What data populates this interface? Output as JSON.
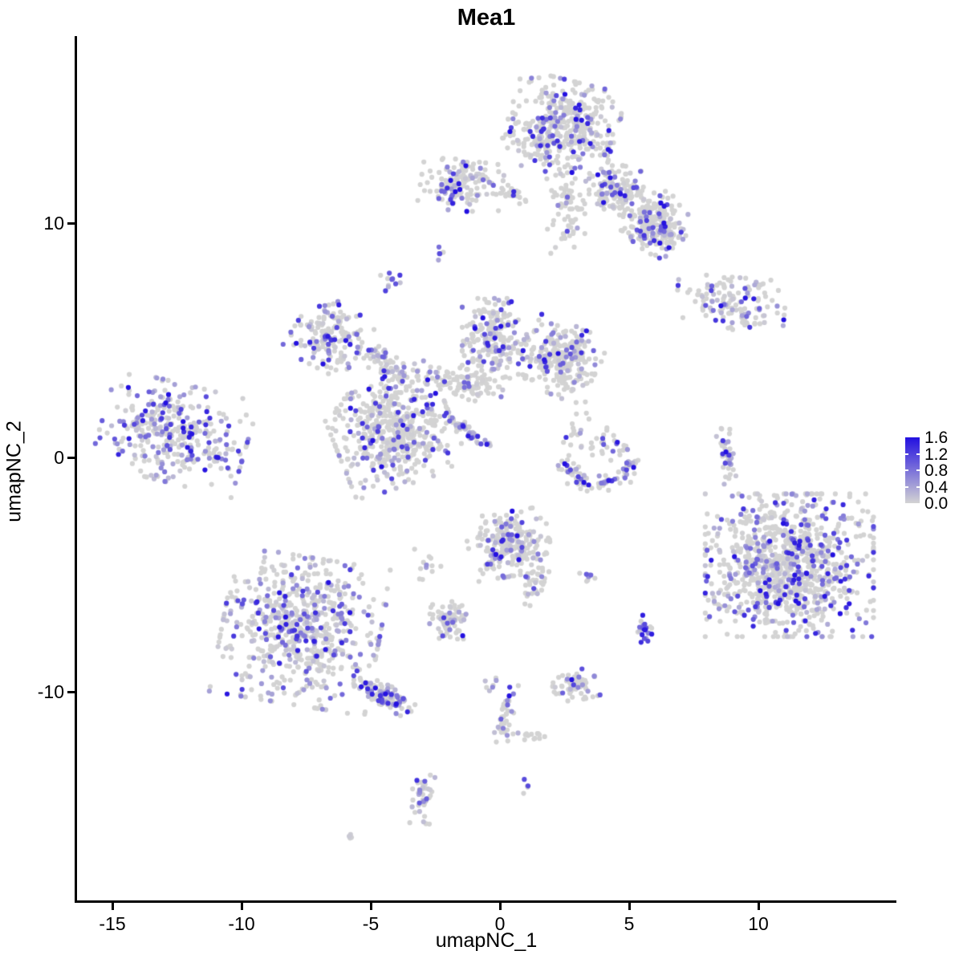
{
  "chart_data": {
    "type": "scatter",
    "title": "Mea1",
    "xlabel": "umapNC_1",
    "ylabel": "umapNC_2",
    "x_ticks": [
      {
        "v": -15,
        "label": "-15"
      },
      {
        "v": -10,
        "label": "-10"
      },
      {
        "v": -5,
        "label": "-5"
      },
      {
        "v": 0,
        "label": "0"
      },
      {
        "v": 5,
        "label": "5"
      },
      {
        "v": 10,
        "label": "10"
      }
    ],
    "y_ticks": [
      {
        "v": 10,
        "label": "10"
      },
      {
        "v": 0,
        "label": "0"
      },
      {
        "v": -10,
        "label": "-10"
      }
    ],
    "xlim": [
      -16.4,
      15.3
    ],
    "ylim": [
      -18.9,
      18.0
    ],
    "grid": false,
    "legend": {
      "position": "right",
      "min": 0,
      "max": 1.6,
      "labels": [
        "1.6",
        "1.2",
        "0.8",
        "0.4",
        "0.0"
      ]
    },
    "colors": {
      "low": "#D3D3D3",
      "high": "#2310E0"
    },
    "point_radius": 3.1,
    "seed": 42,
    "clusters": [
      {
        "name": "top-main",
        "cx": 2.4,
        "cy": 14.1,
        "rx": 1.0,
        "ry": 0.95,
        "rot": -15,
        "n": 420,
        "frac": 0.3,
        "pow": 2.0
      },
      {
        "name": "top-neck",
        "cx": 2.55,
        "cy": 10.6,
        "rx": 0.35,
        "ry": 0.9,
        "rot": 0,
        "n": 75,
        "frac": 0.22,
        "pow": 2.0
      },
      {
        "name": "trail-mid",
        "cx": 4.5,
        "cy": 11.4,
        "rx": 0.5,
        "ry": 0.5,
        "rot": 0,
        "n": 140,
        "frac": 0.36,
        "pow": 2.0
      },
      {
        "name": "trail-right",
        "cx": 6.0,
        "cy": 10.1,
        "rx": 0.55,
        "ry": 0.6,
        "rot": -35,
        "n": 180,
        "frac": 0.36,
        "pow": 2.0
      },
      {
        "name": "trail-tip",
        "cx": 6.35,
        "cy": 9.35,
        "rx": 0.4,
        "ry": 0.4,
        "rot": 0,
        "n": 48,
        "frac": 0.4,
        "pow": 2.0
      },
      {
        "name": "topleft-bar",
        "cx": -1.5,
        "cy": 11.6,
        "rx": 0.75,
        "ry": 0.52,
        "rot": -8,
        "n": 150,
        "frac": 0.3,
        "pow": 2.0
      },
      {
        "name": "topleft-bits",
        "cx": 0.4,
        "cy": 11.25,
        "rx": 0.3,
        "ry": 0.2,
        "rot": 0,
        "n": 22,
        "frac": 0.3,
        "pow": 2.0
      },
      {
        "name": "dot-a",
        "cx": -2.45,
        "cy": 8.8,
        "rx": 0.18,
        "ry": 0.18,
        "rot": 0,
        "n": 5,
        "frac": 0.5,
        "pow": 1.6
      },
      {
        "name": "dot-b",
        "cx": -4.2,
        "cy": 7.4,
        "rx": 0.25,
        "ry": 0.3,
        "rot": 20,
        "n": 12,
        "frac": 0.45,
        "pow": 1.6
      },
      {
        "name": "arrow",
        "cx": 8.95,
        "cy": 6.75,
        "rx": 1.0,
        "ry": 0.45,
        "rot": -5,
        "n": 120,
        "frac": 0.45,
        "pow": 1.8
      },
      {
        "name": "arrow-tail",
        "cx": 9.35,
        "cy": 5.8,
        "rx": 0.25,
        "ry": 0.25,
        "rot": 0,
        "n": 16,
        "frac": 0.3,
        "pow": 2.0
      },
      {
        "name": "arm-left",
        "cx": -6.6,
        "cy": 5.2,
        "rx": 0.65,
        "ry": 0.68,
        "rot": -30,
        "n": 170,
        "frac": 0.42,
        "pow": 2.0
      },
      {
        "name": "strand-a",
        "cx": -4.4,
        "cy": 3.9,
        "rx": 0.65,
        "ry": 0.25,
        "rot": -35,
        "n": 75,
        "frac": 0.35,
        "pow": 2.0
      },
      {
        "name": "funnel",
        "cx": -0.2,
        "cy": 4.9,
        "rx": 0.6,
        "ry": 0.9,
        "rot": 0,
        "n": 220,
        "frac": 0.3,
        "pow": 2.0
      },
      {
        "name": "right-lobe",
        "cx": 2.35,
        "cy": 4.2,
        "rx": 0.7,
        "ry": 0.72,
        "rot": -25,
        "n": 250,
        "frac": 0.3,
        "pow": 2.0
      },
      {
        "name": "band",
        "cx": -1.65,
        "cy": 3.2,
        "rx": 0.85,
        "ry": 0.3,
        "rot": -12,
        "n": 95,
        "frac": 0.3,
        "pow": 2.0
      },
      {
        "name": "central-lobe",
        "cx": -4.1,
        "cy": 1.0,
        "rx": 1.1,
        "ry": 1.05,
        "rot": 20,
        "n": 500,
        "frac": 0.32,
        "pow": 2.0
      },
      {
        "name": "streak",
        "cx": -1.3,
        "cy": 1.2,
        "rx": 0.55,
        "ry": 0.1,
        "rot": -40,
        "n": 52,
        "frac": 0.75,
        "pow": 2.2
      },
      {
        "name": "left-cluster",
        "cx": -12.6,
        "cy": 1.05,
        "rx": 1.35,
        "ry": 1.0,
        "rot": -15,
        "n": 340,
        "frac": 0.58,
        "pow": 2.2
      },
      {
        "name": "crescent",
        "type": "arc",
        "cx": 3.8,
        "cy": 0.0,
        "r": 1.3,
        "a0": 185,
        "a1": 355,
        "jit": 0.2,
        "ysc": 0.9,
        "n": 90,
        "frac": 0.45,
        "pow": 1.8
      },
      {
        "name": "crescent-top-a",
        "cx": 3.3,
        "cy": 0.75,
        "rx": 0.4,
        "ry": 0.35,
        "rot": 0,
        "n": 24,
        "frac": 0.2,
        "pow": 2.0
      },
      {
        "name": "crescent-top-b",
        "cx": 4.6,
        "cy": 0.4,
        "rx": 0.35,
        "ry": 0.3,
        "rot": 0,
        "n": 16,
        "frac": 0.2,
        "pow": 2.0
      },
      {
        "name": "strip",
        "cx": 8.8,
        "cy": 0.15,
        "rx": 0.15,
        "ry": 0.6,
        "rot": 8,
        "n": 42,
        "frac": 0.55,
        "pow": 1.8
      },
      {
        "name": "bottomright-big",
        "cx": 11.2,
        "cy": -4.6,
        "rx": 1.55,
        "ry": 1.45,
        "rot": 0,
        "n": 1000,
        "frac": 0.33,
        "pow": 1.7
      },
      {
        "name": "bottomleft-big",
        "cx": -7.7,
        "cy": -7.4,
        "rx": 1.45,
        "ry": 1.5,
        "rot": -10,
        "n": 650,
        "frac": 0.46,
        "pow": 2.2
      },
      {
        "name": "bl-tail",
        "cx": -4.5,
        "cy": -10.15,
        "rx": 0.6,
        "ry": 0.22,
        "rot": -28,
        "n": 120,
        "frac": 0.46,
        "pow": 2.0
      },
      {
        "name": "center-bottom",
        "cx": 0.35,
        "cy": -3.7,
        "rx": 0.75,
        "ry": 0.65,
        "rot": 10,
        "n": 240,
        "frac": 0.3,
        "pow": 1.9
      },
      {
        "name": "cb-neck",
        "cx": 1.45,
        "cy": -5.2,
        "rx": 0.22,
        "ry": 0.55,
        "rot": -20,
        "n": 35,
        "frac": 0.25,
        "pow": 2.0
      },
      {
        "name": "pair",
        "cx": 3.4,
        "cy": -5.1,
        "rx": 0.28,
        "ry": 0.18,
        "rot": 0,
        "n": 9,
        "frac": 0.6,
        "pow": 1.8
      },
      {
        "name": "small-blob",
        "cx": -1.95,
        "cy": -6.95,
        "rx": 0.38,
        "ry": 0.38,
        "rot": 0,
        "n": 78,
        "frac": 0.36,
        "pow": 2.0
      },
      {
        "name": "purple-small",
        "cx": 5.6,
        "cy": -7.35,
        "rx": 0.13,
        "ry": 0.33,
        "rot": 0,
        "n": 26,
        "frac": 0.85,
        "pow": 1.8
      },
      {
        "name": "hook",
        "cx": 2.9,
        "cy": -9.75,
        "rx": 0.4,
        "ry": 0.3,
        "rot": 15,
        "n": 68,
        "frac": 0.3,
        "pow": 2.0
      },
      {
        "name": "chain-pair",
        "cx": -0.35,
        "cy": -9.55,
        "rx": 0.14,
        "ry": 0.22,
        "rot": 0,
        "n": 7,
        "frac": 0.6,
        "pow": 1.8
      },
      {
        "name": "chain-strand",
        "cx": 0.15,
        "cy": -11.0,
        "rx": 0.17,
        "ry": 0.65,
        "rot": -10,
        "n": 42,
        "frac": 0.3,
        "pow": 2.0
      },
      {
        "name": "junction-arm",
        "cx": 1.1,
        "cy": -11.9,
        "rx": 0.3,
        "ry": 0.12,
        "rot": 0,
        "n": 14,
        "frac": 0.12,
        "pow": 2.0
      },
      {
        "name": "elong-dot",
        "cx": 0.97,
        "cy": -14.2,
        "rx": 0.08,
        "ry": 0.22,
        "rot": 0,
        "n": 5,
        "frac": 0.9,
        "pow": 1.8
      },
      {
        "name": "s-cluster",
        "cx": -3.0,
        "cy": -14.5,
        "rx": 0.22,
        "ry": 0.55,
        "rot": -10,
        "n": 44,
        "frac": 0.5,
        "pow": 1.9
      },
      {
        "name": "tiny-pair",
        "cx": -5.7,
        "cy": -16.15,
        "rx": 0.14,
        "ry": 0.1,
        "rot": 0,
        "n": 4,
        "frac": 0.8,
        "pow": 1.8
      },
      {
        "name": "sparse-mid",
        "cx": 2.9,
        "cy": 2.0,
        "rx": 0.4,
        "ry": 0.6,
        "rot": 0,
        "n": 10,
        "frac": 0.1,
        "pow": 2.0
      },
      {
        "name": "sparse-left",
        "cx": -2.6,
        "cy": -4.9,
        "rx": 0.5,
        "ry": 0.5,
        "rot": 0,
        "n": 12,
        "frac": 0.1,
        "pow": 2.0
      }
    ]
  }
}
